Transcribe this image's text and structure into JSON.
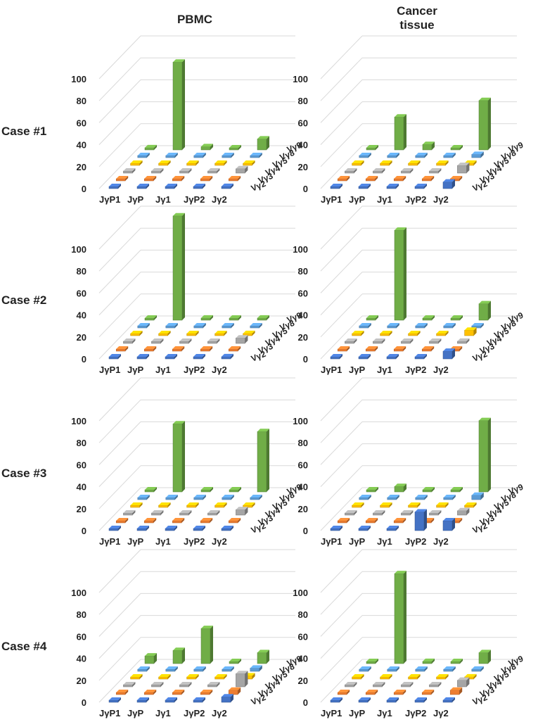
{
  "figure": {
    "column_titles": [
      "PBMC",
      "Cancer\ntissue"
    ],
    "row_labels": [
      "Case #1",
      "Case #2",
      "Case #3",
      "Case #4"
    ]
  },
  "colors": {
    "Vγ2": "#4472c4",
    "Vγ3": "#ed7d31",
    "Vγ4": "#a5a5a5",
    "Vγ5": "#ffc000",
    "Vγ8": "#5b9bd5",
    "Vγ9": "#70ad47",
    "grid": "#d9d9d9",
    "text": "#222222"
  },
  "chart_data": [
    {
      "type": "bar3d",
      "case": "Case #1",
      "sample": "PBMC",
      "zlim": [
        0,
        100
      ],
      "zticks": [
        0,
        20,
        40,
        60,
        80,
        100
      ],
      "categories": [
        "JγP1",
        "JγP",
        "Jγ1",
        "JγP2",
        "Jγ2"
      ],
      "series": [
        {
          "name": "Vγ2",
          "values": [
            0,
            0,
            0,
            0,
            2
          ]
        },
        {
          "name": "Vγ3",
          "values": [
            0,
            0,
            0,
            0,
            0
          ]
        },
        {
          "name": "Vγ4",
          "values": [
            0,
            0,
            0,
            0,
            4
          ]
        },
        {
          "name": "Vγ5",
          "values": [
            0,
            0,
            0,
            0,
            0
          ]
        },
        {
          "name": "Vγ8",
          "values": [
            0,
            0,
            0,
            0,
            0
          ]
        },
        {
          "name": "Vγ9",
          "values": [
            2,
            80,
            3,
            0,
            10
          ]
        }
      ]
    },
    {
      "type": "bar3d",
      "case": "Case #1",
      "sample": "Cancer tissue",
      "zlim": [
        0,
        100
      ],
      "zticks": [
        0,
        20,
        40,
        60,
        80,
        100
      ],
      "categories": [
        "JγP1",
        "JγP",
        "Jγ1",
        "JγP2",
        "Jγ2"
      ],
      "series": [
        {
          "name": "Vγ2",
          "values": [
            0,
            0,
            0,
            0,
            6
          ]
        },
        {
          "name": "Vγ3",
          "values": [
            0,
            0,
            0,
            0,
            0
          ]
        },
        {
          "name": "Vγ4",
          "values": [
            0,
            0,
            0,
            0,
            7
          ]
        },
        {
          "name": "Vγ5",
          "values": [
            0,
            0,
            0,
            0,
            2
          ]
        },
        {
          "name": "Vγ8",
          "values": [
            0,
            0,
            0,
            0,
            3
          ]
        },
        {
          "name": "Vγ9",
          "values": [
            0,
            30,
            5,
            0,
            45
          ]
        }
      ]
    },
    {
      "type": "bar3d",
      "case": "Case #2",
      "sample": "PBMC",
      "zlim": [
        0,
        100
      ],
      "zticks": [
        0,
        20,
        40,
        60,
        80,
        100
      ],
      "categories": [
        "JγP1",
        "JγP",
        "Jγ1",
        "JγP2",
        "Jγ2"
      ],
      "series": [
        {
          "name": "Vγ2",
          "values": [
            0,
            0,
            0,
            0,
            2
          ]
        },
        {
          "name": "Vγ3",
          "values": [
            0,
            0,
            0,
            0,
            0
          ]
        },
        {
          "name": "Vγ4",
          "values": [
            0,
            0,
            0,
            0,
            5
          ]
        },
        {
          "name": "Vγ5",
          "values": [
            0,
            0,
            0,
            0,
            2
          ]
        },
        {
          "name": "Vγ8",
          "values": [
            0,
            0,
            0,
            0,
            0
          ]
        },
        {
          "name": "Vγ9",
          "values": [
            0,
            95,
            2,
            0,
            2
          ]
        }
      ]
    },
    {
      "type": "bar3d",
      "case": "Case #2",
      "sample": "Cancer tissue",
      "zlim": [
        0,
        100
      ],
      "zticks": [
        0,
        20,
        40,
        60,
        80,
        100
      ],
      "categories": [
        "JγP1",
        "JγP",
        "Jγ1",
        "JγP2",
        "Jγ2"
      ],
      "series": [
        {
          "name": "Vγ2",
          "values": [
            0,
            0,
            0,
            0,
            7
          ]
        },
        {
          "name": "Vγ3",
          "values": [
            0,
            0,
            0,
            0,
            0
          ]
        },
        {
          "name": "Vγ4",
          "values": [
            0,
            0,
            0,
            0,
            2
          ]
        },
        {
          "name": "Vγ5",
          "values": [
            0,
            0,
            0,
            0,
            5
          ]
        },
        {
          "name": "Vγ8",
          "values": [
            0,
            0,
            0,
            0,
            0
          ]
        },
        {
          "name": "Vγ9",
          "values": [
            0,
            82,
            0,
            0,
            15
          ]
        }
      ]
    },
    {
      "type": "bar3d",
      "case": "Case #3",
      "sample": "PBMC",
      "zlim": [
        0,
        100
      ],
      "zticks": [
        0,
        20,
        40,
        60,
        80,
        100
      ],
      "categories": [
        "JγP1",
        "JγP",
        "Jγ1",
        "JγP2",
        "Jγ2"
      ],
      "series": [
        {
          "name": "Vγ2",
          "values": [
            0,
            0,
            0,
            0,
            0
          ]
        },
        {
          "name": "Vγ3",
          "values": [
            0,
            0,
            0,
            0,
            0
          ]
        },
        {
          "name": "Vγ4",
          "values": [
            0,
            0,
            0,
            0,
            5
          ]
        },
        {
          "name": "Vγ5",
          "values": [
            0,
            0,
            0,
            0,
            0
          ]
        },
        {
          "name": "Vγ8",
          "values": [
            0,
            0,
            0,
            0,
            0
          ]
        },
        {
          "name": "Vγ9",
          "values": [
            0,
            62,
            0,
            0,
            55
          ]
        }
      ]
    },
    {
      "type": "bar3d",
      "case": "Case #3",
      "sample": "Cancer tissue",
      "zlim": [
        0,
        100
      ],
      "zticks": [
        0,
        20,
        40,
        60,
        80,
        100
      ],
      "categories": [
        "JγP1",
        "JγP",
        "Jγ1",
        "JγP2",
        "Jγ2"
      ],
      "series": [
        {
          "name": "Vγ2",
          "values": [
            0,
            0,
            0,
            17,
            9
          ]
        },
        {
          "name": "Vγ3",
          "values": [
            0,
            0,
            0,
            0,
            0
          ]
        },
        {
          "name": "Vγ4",
          "values": [
            0,
            0,
            0,
            0,
            4
          ]
        },
        {
          "name": "Vγ5",
          "values": [
            0,
            0,
            0,
            2,
            0
          ]
        },
        {
          "name": "Vγ8",
          "values": [
            0,
            0,
            0,
            0,
            4
          ]
        },
        {
          "name": "Vγ9",
          "values": [
            0,
            5,
            0,
            0,
            65
          ]
        }
      ]
    },
    {
      "type": "bar3d",
      "case": "Case #4",
      "sample": "PBMC",
      "zlim": [
        0,
        100
      ],
      "zticks": [
        0,
        20,
        40,
        60,
        80,
        100
      ],
      "categories": [
        "JγP1",
        "JγP",
        "Jγ1",
        "JγP2",
        "Jγ2"
      ],
      "series": [
        {
          "name": "Vγ2",
          "values": [
            0,
            0,
            2,
            2,
            5
          ]
        },
        {
          "name": "Vγ3",
          "values": [
            0,
            0,
            0,
            0,
            4
          ]
        },
        {
          "name": "Vγ4",
          "values": [
            0,
            0,
            0,
            0,
            12
          ]
        },
        {
          "name": "Vγ5",
          "values": [
            0,
            0,
            0,
            0,
            3
          ]
        },
        {
          "name": "Vγ8",
          "values": [
            0,
            0,
            0,
            0,
            3
          ]
        },
        {
          "name": "Vγ9",
          "values": [
            7,
            12,
            32,
            0,
            10
          ]
        }
      ]
    },
    {
      "type": "bar3d",
      "case": "Case #4",
      "sample": "Cancer tissue",
      "zlim": [
        0,
        100
      ],
      "zticks": [
        0,
        20,
        40,
        60,
        80,
        100
      ],
      "categories": [
        "JγP1",
        "JγP",
        "Jγ1",
        "JγP2",
        "Jγ2"
      ],
      "series": [
        {
          "name": "Vγ2",
          "values": [
            0,
            0,
            0,
            0,
            2
          ]
        },
        {
          "name": "Vγ3",
          "values": [
            0,
            0,
            0,
            0,
            4
          ]
        },
        {
          "name": "Vγ4",
          "values": [
            0,
            0,
            0,
            0,
            6
          ]
        },
        {
          "name": "Vγ5",
          "values": [
            0,
            0,
            0,
            0,
            2
          ]
        },
        {
          "name": "Vγ8",
          "values": [
            0,
            0,
            0,
            0,
            2
          ]
        },
        {
          "name": "Vγ9",
          "values": [
            0,
            82,
            2,
            0,
            10
          ]
        }
      ]
    }
  ]
}
